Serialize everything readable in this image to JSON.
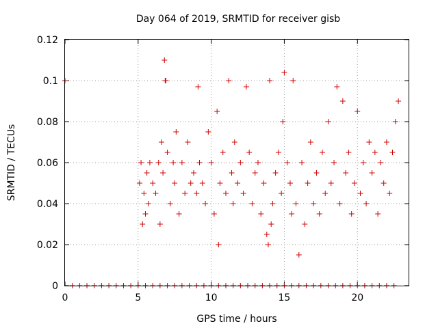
{
  "chart_data": {
    "type": "scatter",
    "title": "Day 064 of 2019, SRMTID for receiver gisb",
    "xlabel": "GPS time / hours",
    "ylabel": "SRMTID / TECUs",
    "xlim": [
      0,
      23.5
    ],
    "ylim": [
      0,
      0.12
    ],
    "x_ticks": [
      0,
      5,
      10,
      15,
      20
    ],
    "x_tick_labels": [
      "0",
      "5",
      "10",
      "15",
      "20"
    ],
    "y_ticks": [
      0,
      0.02,
      0.04,
      0.06,
      0.08,
      0.1,
      0.12
    ],
    "y_tick_labels": [
      "0",
      "0.02",
      "0.04",
      "0.06",
      "0.08",
      "0.1",
      "0.12"
    ],
    "grid": true,
    "marker": "plus",
    "marker_color": "#cc0000",
    "series": [
      {
        "x": [
          0.0,
          5.1,
          5.2,
          5.3,
          5.4,
          5.5,
          5.6,
          5.7,
          5.8,
          6.0,
          6.2,
          6.4,
          6.5,
          6.6,
          6.7,
          6.8,
          6.85,
          6.9,
          7.0,
          7.2,
          7.4,
          7.5,
          7.6,
          7.8,
          8.0,
          8.2,
          8.4,
          8.6,
          8.8,
          9.0,
          9.1,
          9.2,
          9.4,
          9.6,
          9.8,
          10.0,
          10.2,
          10.4,
          10.5,
          10.6,
          10.8,
          11.0,
          11.2,
          11.4,
          11.5,
          11.6,
          11.8,
          12.0,
          12.2,
          12.4,
          12.6,
          12.8,
          13.0,
          13.2,
          13.4,
          13.6,
          13.8,
          13.9,
          14.0,
          14.1,
          14.2,
          14.4,
          14.6,
          14.8,
          14.9,
          15.0,
          15.2,
          15.4,
          15.5,
          15.6,
          15.8,
          16.0,
          16.2,
          16.4,
          16.6,
          16.8,
          17.0,
          17.2,
          17.4,
          17.6,
          17.8,
          18.0,
          18.2,
          18.4,
          18.6,
          18.8,
          19.0,
          19.2,
          19.4,
          19.6,
          19.8,
          20.0,
          20.2,
          20.4,
          20.6,
          20.8,
          21.0,
          21.2,
          21.4,
          21.6,
          21.8,
          22.0,
          22.2,
          22.4,
          22.6,
          22.8
        ],
        "y": [
          0.1,
          0.05,
          0.06,
          0.03,
          0.045,
          0.035,
          0.055,
          0.04,
          0.06,
          0.05,
          0.045,
          0.06,
          0.03,
          0.07,
          0.055,
          0.11,
          0.1,
          0.1,
          0.065,
          0.04,
          0.06,
          0.05,
          0.075,
          0.035,
          0.06,
          0.045,
          0.07,
          0.05,
          0.055,
          0.045,
          0.097,
          0.06,
          0.05,
          0.04,
          0.075,
          0.06,
          0.035,
          0.085,
          0.02,
          0.05,
          0.065,
          0.045,
          0.1,
          0.055,
          0.04,
          0.07,
          0.05,
          0.06,
          0.045,
          0.097,
          0.065,
          0.04,
          0.055,
          0.06,
          0.035,
          0.05,
          0.025,
          0.02,
          0.1,
          0.03,
          0.04,
          0.055,
          0.065,
          0.045,
          0.08,
          0.104,
          0.06,
          0.05,
          0.035,
          0.1,
          0.04,
          0.015,
          0.06,
          0.03,
          0.05,
          0.07,
          0.04,
          0.055,
          0.035,
          0.065,
          0.045,
          0.08,
          0.05,
          0.06,
          0.097,
          0.04,
          0.09,
          0.055,
          0.065,
          0.035,
          0.05,
          0.085,
          0.045,
          0.06,
          0.04,
          0.07,
          0.055,
          0.065,
          0.035,
          0.06,
          0.05,
          0.07,
          0.045,
          0.065,
          0.08,
          0.09
        ]
      }
    ],
    "zero_x": [
      0.5,
      1.0,
      1.5,
      2.0,
      2.5,
      3.0,
      3.5,
      4.0,
      4.5,
      5.0,
      5.5,
      6.0,
      6.5,
      7.0,
      7.5,
      8.0,
      8.5,
      9.0,
      9.5,
      10.0,
      10.5,
      11.0,
      11.5,
      12.0,
      12.5,
      13.0,
      13.5,
      14.0,
      14.5,
      15.0,
      15.5,
      16.0,
      16.5,
      17.0,
      17.5,
      18.0,
      18.5,
      19.0,
      19.5,
      20.0,
      20.5,
      21.0,
      21.5,
      22.0,
      22.5
    ]
  }
}
